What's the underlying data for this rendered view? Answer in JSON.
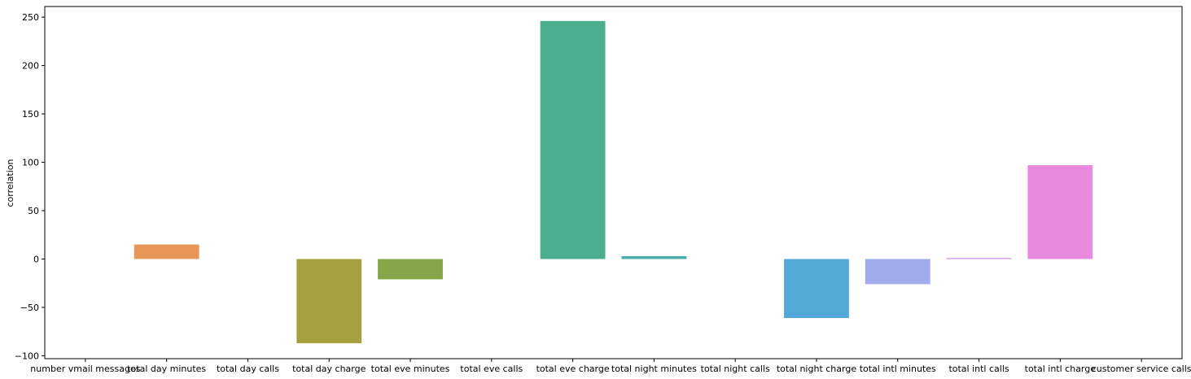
{
  "chart_data": {
    "type": "bar",
    "categories": [
      "number vmail messages",
      "total day minutes",
      "total day calls",
      "total day charge",
      "total eve minutes",
      "total eve calls",
      "total eve charge",
      "total night minutes",
      "total night calls",
      "total night charge",
      "total intl minutes",
      "total intl calls",
      "total intl charge",
      "customer service calls"
    ],
    "values": [
      0,
      15,
      0,
      -87,
      -21,
      0,
      246,
      3,
      0,
      -61,
      -26,
      1,
      97,
      0
    ],
    "colors": [
      "#f77189",
      "#e99557",
      "#c39a32",
      "#a4a03f",
      "#87a64a",
      "#50b147",
      "#4bae8f",
      "#4aaba8",
      "#45a9bf",
      "#53a9d8",
      "#a1aaea",
      "#d189ee",
      "#e98adf",
      "#f57ab5"
    ],
    "title": "",
    "xlabel": "",
    "ylabel": "correlation",
    "ylim": [
      -103,
      261
    ],
    "yticks": [
      -100,
      -50,
      0,
      50,
      100,
      150,
      200,
      250
    ],
    "grid": false
  }
}
